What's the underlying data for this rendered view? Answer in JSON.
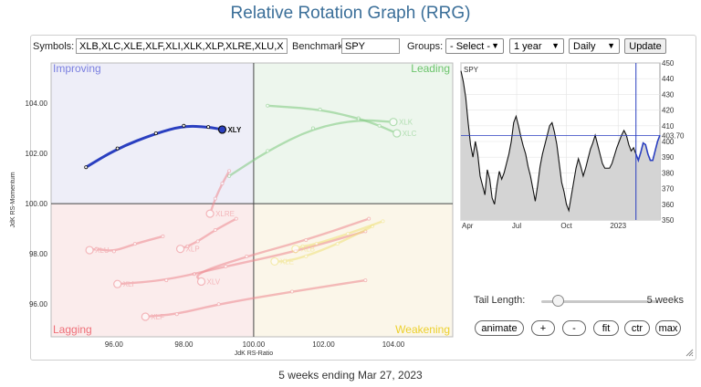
{
  "page": {
    "title": "Relative Rotation Graph (RRG)",
    "footer": "5 weeks ending Mar 27, 2023"
  },
  "controls": {
    "symbols_label": "Symbols:",
    "symbols_value": "XLB,XLC,XLE,XLF,XLI,XLK,XLP,XLRE,XLU,XLV,XLY",
    "benchmark_label": "Benchmark:",
    "benchmark_value": "SPY",
    "groups_label": "Groups:",
    "groups_selected": "- Select -",
    "period_selected": "1 year",
    "frequency_selected": "Daily",
    "update_label": "Update",
    "dropdown_icon": "chevron-down-icon"
  },
  "rrg": {
    "xlabel": "JdK RS-Ratio",
    "ylabel": "JdK RS-Momentum",
    "xlim": [
      94.2,
      105.7
    ],
    "ylim": [
      94.7,
      105.6
    ],
    "center": [
      100,
      100
    ],
    "x_ticks": [
      "96.00",
      "98.00",
      "100.00",
      "102.00",
      "104.00"
    ],
    "y_ticks": [
      "96.00",
      "98.00",
      "100.00",
      "102.00",
      "104.00"
    ],
    "quadrants": {
      "improving": {
        "label": "Improving",
        "color": "#7b80e0",
        "bg": "#eeeef8"
      },
      "leading": {
        "label": "Leading",
        "color": "#6cc46c",
        "bg": "#edf6ed"
      },
      "lagging": {
        "label": "Lagging",
        "color": "#ee6f78",
        "bg": "#fbecec"
      },
      "weakening": {
        "label": "Weakening",
        "color": "#ecd02c",
        "bg": "#fbf6e9"
      }
    },
    "series": [
      {
        "name": "XLY",
        "color": "#2a3fc0",
        "highlight": true,
        "points": [
          [
            95.2,
            101.45
          ],
          [
            96.1,
            102.2
          ],
          [
            97.2,
            102.8
          ],
          [
            98.0,
            103.1
          ],
          [
            98.7,
            103.05
          ],
          [
            99.1,
            102.95
          ]
        ]
      },
      {
        "name": "XLK",
        "color": "#7ec97e",
        "points": [
          [
            99.3,
            101.1
          ],
          [
            100.4,
            102.1
          ],
          [
            101.7,
            103.0
          ],
          [
            103.0,
            103.35
          ],
          [
            104.0,
            103.25
          ]
        ]
      },
      {
        "name": "XLC",
        "color": "#7ec97e",
        "points": [
          [
            100.4,
            103.9
          ],
          [
            101.9,
            103.75
          ],
          [
            103.0,
            103.4
          ],
          [
            103.6,
            103.1
          ],
          [
            104.1,
            102.8
          ]
        ]
      },
      {
        "name": "XLRE",
        "color": "#ee8990",
        "points": [
          [
            99.3,
            101.3
          ],
          [
            99.1,
            100.8
          ],
          [
            98.9,
            100.2
          ],
          [
            98.75,
            99.6
          ]
        ]
      },
      {
        "name": "XLU",
        "color": "#ee8990",
        "points": [
          [
            97.4,
            98.7
          ],
          [
            96.6,
            98.4
          ],
          [
            96.0,
            98.1
          ],
          [
            95.5,
            98.2
          ],
          [
            95.3,
            98.15
          ]
        ]
      },
      {
        "name": "XLP",
        "color": "#ee8990",
        "points": [
          [
            99.5,
            99.4
          ],
          [
            98.9,
            98.95
          ],
          [
            98.4,
            98.5
          ],
          [
            98.1,
            98.3
          ],
          [
            97.9,
            98.2
          ]
        ]
      },
      {
        "name": "XLI",
        "color": "#ee8990",
        "points": [
          [
            103.2,
            98.9
          ],
          [
            101.2,
            98.1
          ],
          [
            99.2,
            97.5
          ],
          [
            97.5,
            96.95
          ],
          [
            96.1,
            96.8
          ]
        ]
      },
      {
        "name": "XLV",
        "color": "#ee8990",
        "points": [
          [
            103.3,
            99.4
          ],
          [
            101.5,
            98.55
          ],
          [
            99.8,
            97.9
          ],
          [
            98.3,
            97.2
          ],
          [
            98.5,
            96.9
          ]
        ]
      },
      {
        "name": "XLF",
        "color": "#ee8990",
        "points": [
          [
            103.2,
            96.95
          ],
          [
            101.1,
            96.5
          ],
          [
            99.0,
            96.0
          ],
          [
            97.8,
            95.6
          ],
          [
            96.9,
            95.5
          ]
        ]
      },
      {
        "name": "XLE",
        "color": "#f0e27a",
        "points": [
          [
            103.4,
            99.1
          ],
          [
            102.4,
            98.4
          ],
          [
            101.5,
            97.9
          ],
          [
            100.9,
            97.7
          ],
          [
            100.6,
            97.7
          ]
        ]
      },
      {
        "name": "XLB",
        "color": "#f0e27a",
        "points": [
          [
            103.7,
            99.3
          ],
          [
            102.7,
            98.8
          ],
          [
            101.8,
            98.4
          ],
          [
            101.4,
            98.3
          ],
          [
            101.2,
            98.2
          ]
        ]
      }
    ]
  },
  "price_chart": {
    "symbol": "SPY",
    "y_ticks": [
      "450",
      "440",
      "430",
      "420",
      "410",
      "400",
      "390",
      "380",
      "370",
      "360",
      "350"
    ],
    "ylim": [
      350,
      450
    ],
    "x_ticks": [
      "Apr",
      "Jul",
      "Oct",
      "2023"
    ],
    "current_value": "403.70",
    "values": [
      445,
      438,
      428,
      412,
      398,
      390,
      400,
      392,
      378,
      372,
      366,
      382,
      376,
      364,
      360,
      372,
      381,
      376,
      380,
      386,
      392,
      400,
      412,
      416,
      410,
      403,
      397,
      392,
      384,
      378,
      370,
      362,
      372,
      384,
      392,
      398,
      404,
      410,
      412,
      406,
      398,
      386,
      374,
      368,
      360,
      356,
      365,
      374,
      383,
      389,
      384,
      378,
      383,
      389,
      395,
      399,
      404,
      398,
      392,
      386,
      383,
      383,
      383,
      386,
      391,
      396,
      400,
      404,
      407,
      404,
      398,
      394,
      396,
      392,
      388,
      393,
      399,
      398,
      392,
      388,
      388,
      394,
      400,
      404
    ]
  },
  "tail": {
    "label": "Tail Length:",
    "value": "5 weeks",
    "level": 0.1
  },
  "buttons": {
    "animate": "animate",
    "plus": "+",
    "minus": "-",
    "fit": "fit",
    "ctr": "ctr",
    "max": "max"
  }
}
